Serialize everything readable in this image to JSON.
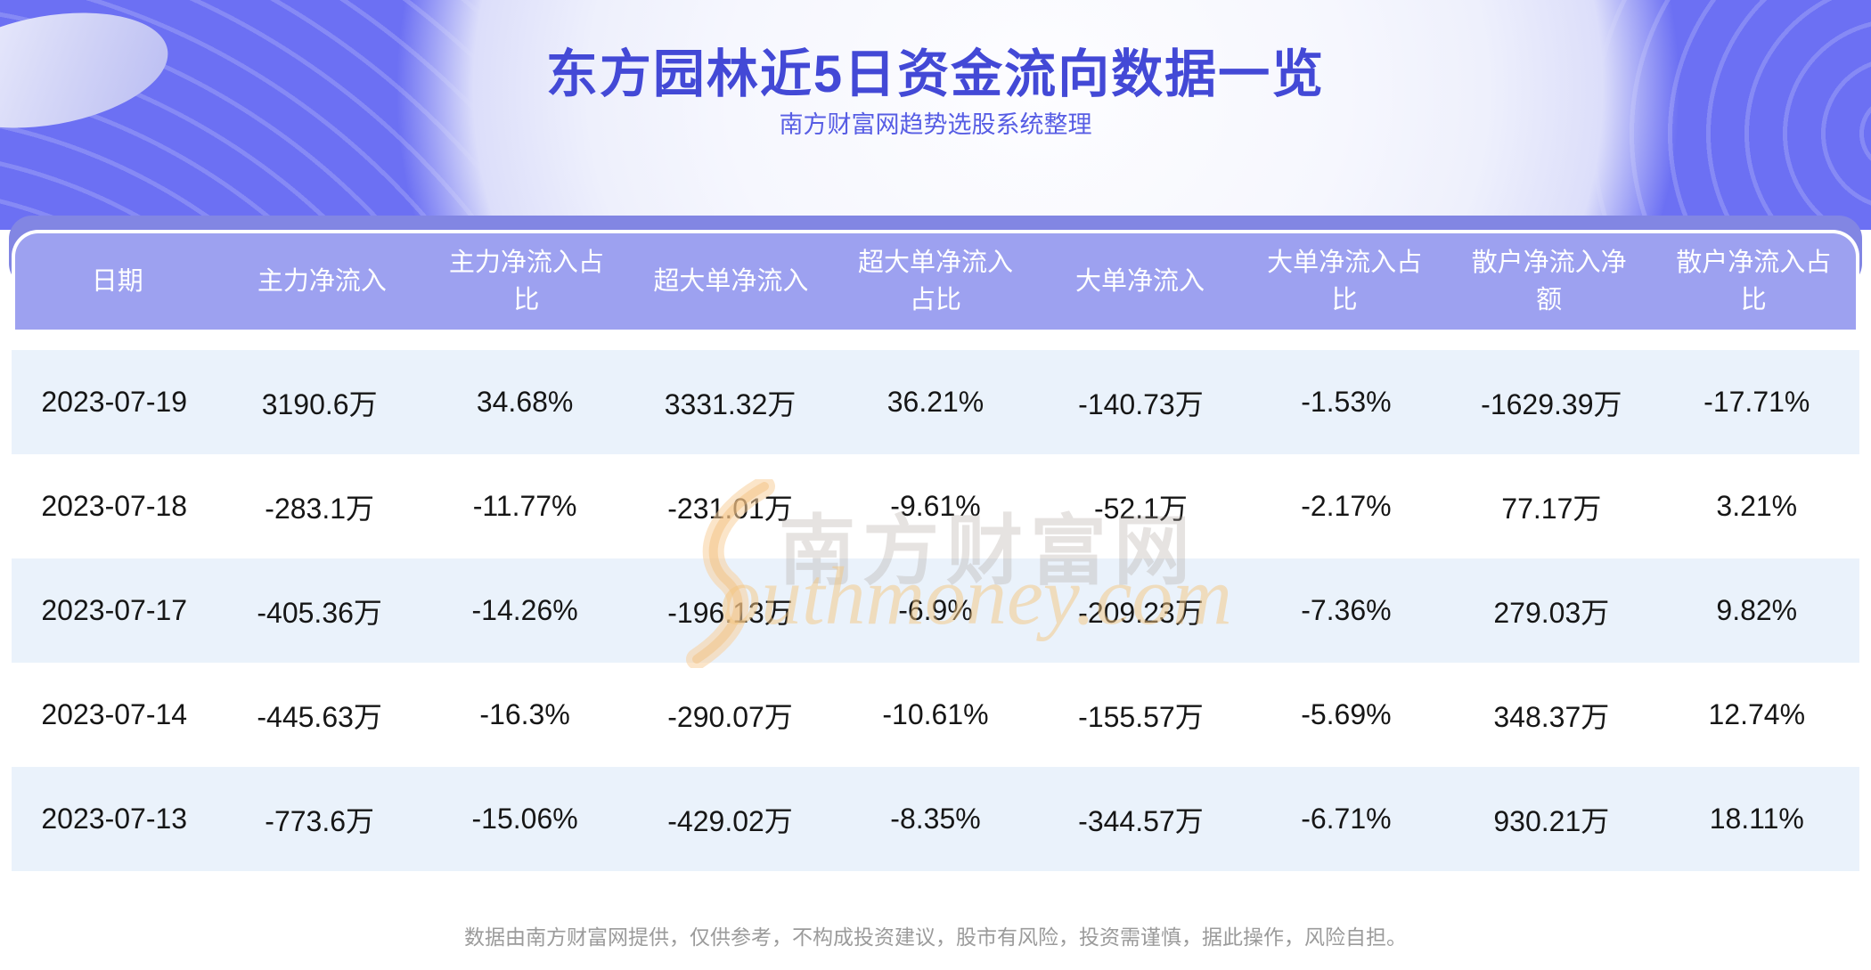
{
  "page": {
    "title": "东方园林近5日资金流向数据一览",
    "subtitle": "南方财富网趋势选股系统整理",
    "disclaimer": "数据由南方财富网提供，仅供参考，不构成投资建议，股市有风险，投资需谨慎，据此操作，风险自担。"
  },
  "watermark": {
    "cn_text": "南方财富网",
    "en_text": "outhmoney.com"
  },
  "colors": {
    "hero_purple": "#6c70f3",
    "band_purple": "#8286e3",
    "header_purple": "#9da1f0",
    "row_stripe_blue": "#eaf2fb",
    "title_blue": "#4349d6",
    "subtitle_blue": "#575de4",
    "footer_gray": "#9b9b9b",
    "watermark_orange": "#f3c580"
  },
  "table": {
    "columns": [
      "日期",
      "主力净流入",
      "主力净流入占\n比",
      "超大单净流入",
      "超大单净流入\n占比",
      "大单净流入",
      "大单净流入占\n比",
      "散户净流入净\n额",
      "散户净流入占\n比"
    ],
    "rows": [
      [
        "2023-07-19",
        "3190.6万",
        "34.68%",
        "3331.32万",
        "36.21%",
        "-140.73万",
        "-1.53%",
        "-1629.39万",
        "-17.71%"
      ],
      [
        "2023-07-18",
        "-283.1万",
        "-11.77%",
        "-231.01万",
        "-9.61%",
        "-52.1万",
        "-2.17%",
        "77.17万",
        "3.21%"
      ],
      [
        "2023-07-17",
        "-405.36万",
        "-14.26%",
        "-196.13万",
        "-6.9%",
        "-209.23万",
        "-7.36%",
        "279.03万",
        "9.82%"
      ],
      [
        "2023-07-14",
        "-445.63万",
        "-16.3%",
        "-290.07万",
        "-10.61%",
        "-155.57万",
        "-5.69%",
        "348.37万",
        "12.74%"
      ],
      [
        "2023-07-13",
        "-773.6万",
        "-15.06%",
        "-429.02万",
        "-8.35%",
        "-344.57万",
        "-6.71%",
        "930.21万",
        "18.11%"
      ]
    ]
  },
  "chart_data": {
    "type": "table",
    "title": "东方园林近5日资金流向数据一览",
    "subtitle": "南方财富网趋势选股系统整理",
    "columns": [
      "日期",
      "主力净流入",
      "主力净流入占比",
      "超大单净流入",
      "超大单净流入占比",
      "大单净流入",
      "大单净流入占比",
      "散户净流入净额",
      "散户净流入占比"
    ],
    "rows": [
      [
        "2023-07-19",
        "3190.6万",
        "34.68%",
        "3331.32万",
        "36.21%",
        "-140.73万",
        "-1.53%",
        "-1629.39万",
        "-17.71%"
      ],
      [
        "2023-07-18",
        "-283.1万",
        "-11.77%",
        "-231.01万",
        "-9.61%",
        "-52.1万",
        "-2.17%",
        "77.17万",
        "3.21%"
      ],
      [
        "2023-07-17",
        "-405.36万",
        "-14.26%",
        "-196.13万",
        "-6.9%",
        "-209.23万",
        "-7.36%",
        "279.03万",
        "9.82%"
      ],
      [
        "2023-07-14",
        "-445.63万",
        "-16.3%",
        "-290.07万",
        "-10.61%",
        "-155.57万",
        "-5.69%",
        "348.37万",
        "12.74%"
      ],
      [
        "2023-07-13",
        "-773.6万",
        "-15.06%",
        "-429.02万",
        "-8.35%",
        "-344.57万",
        "-6.71%",
        "930.21万",
        "18.11%"
      ]
    ]
  }
}
